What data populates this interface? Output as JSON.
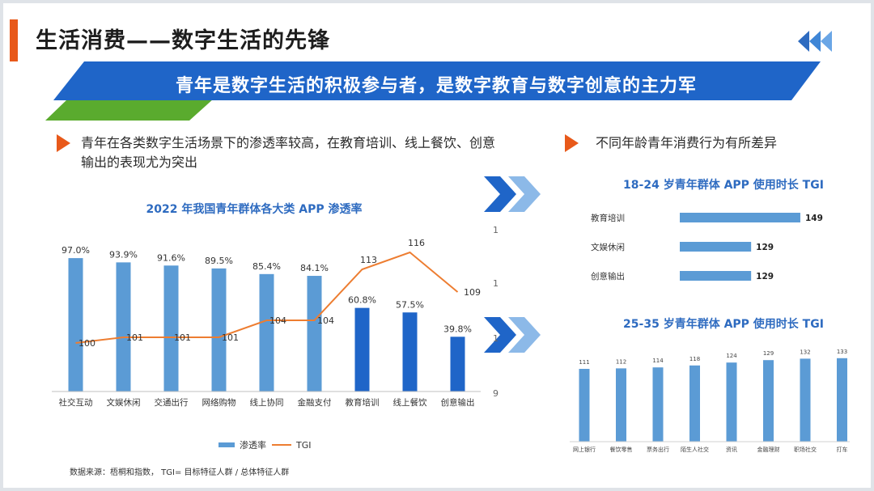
{
  "title": "生活消费——数字生活的先锋",
  "banner": "青年是数字生活的积极参与者，是数字教育与数字创意的主力军",
  "left_bullet": "青年在各类数字生活场景下的渗透率较高，在教育培训、线上餐饮、创意输出的表现尤为突出",
  "right_bullet": "不同年龄青年消费行为有所差异",
  "source": "数据来源：梧桐和指数， TGI= 目标特征人群 / 总体特征人群",
  "colors": {
    "accent": "#e8591a",
    "bar_light": "#5b9bd5",
    "bar_dark": "#1f65c8",
    "line": "#ed7d31",
    "title_blue": "#2e6bc0"
  },
  "chart_data": [
    {
      "type": "bar",
      "title": "2022 年我国青年群体各大类 APP 渗透率",
      "categories": [
        "社交互动",
        "文娱休闲",
        "交通出行",
        "网络购物",
        "线上协同",
        "金融支付",
        "教育培训",
        "线上餐饮",
        "创意输出"
      ],
      "series": [
        {
          "name": "渗透率",
          "type": "bar",
          "values": [
            97.0,
            93.9,
            91.6,
            89.5,
            85.4,
            84.1,
            60.8,
            57.5,
            39.8
          ],
          "labels": [
            "97.0%",
            "93.9%",
            "91.6%",
            "89.5%",
            "85.4%",
            "84.1%",
            "60.8%",
            "57.5%",
            "39.8%"
          ],
          "highlight": [
            false,
            false,
            false,
            false,
            false,
            false,
            true,
            true,
            true
          ]
        },
        {
          "name": "TGI",
          "type": "line",
          "values": [
            100,
            101,
            101,
            101,
            104,
            104,
            113,
            116,
            109
          ]
        }
      ],
      "ylim": [
        0,
        100
      ],
      "y2lim": [
        90,
        120
      ],
      "y2_ticks_visible": [
        "1",
        "1",
        "1",
        "9"
      ],
      "legend": "bottom"
    },
    {
      "type": "bar",
      "orientation": "horizontal",
      "title": "18-24 岁青年群体 APP 使用时长 TGI",
      "categories": [
        "教育培训",
        "文娱休闲",
        "创意输出"
      ],
      "values": [
        149,
        129,
        129
      ],
      "xlim": [
        100,
        150
      ]
    },
    {
      "type": "bar",
      "title": "25-35 岁青年群体 APP 使用时长 TGI",
      "categories": [
        "网上银行",
        "餐饮零售",
        "票务出行",
        "陌生人社交",
        "资讯",
        "金融理财",
        "职场社交",
        "打车"
      ],
      "values": [
        111,
        112,
        114,
        118,
        124,
        129,
        132,
        133
      ],
      "ylim": [
        100,
        133
      ]
    }
  ]
}
